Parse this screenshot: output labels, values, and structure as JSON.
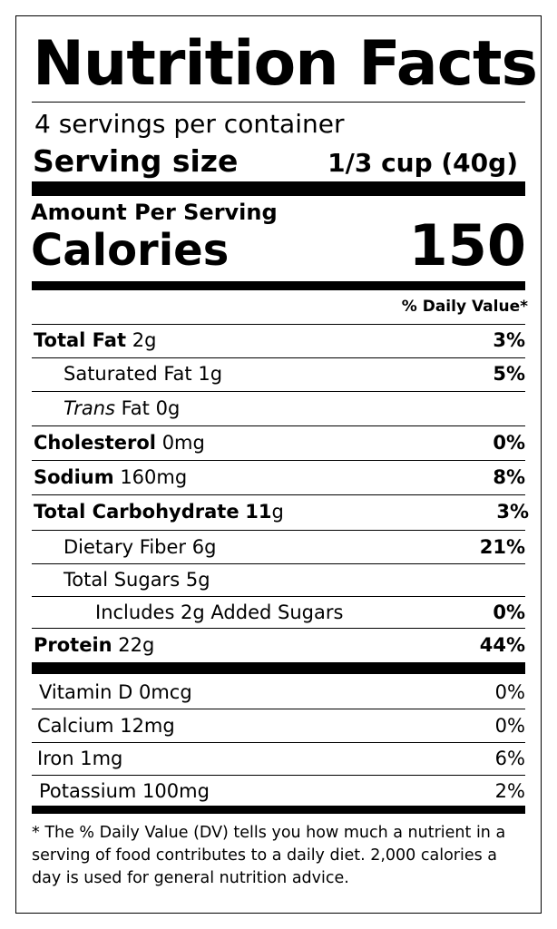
{
  "title": "Nutrition Facts",
  "servings_per_container": "4 servings per container",
  "serving_size_label": "Serving size",
  "serving_size_value": "1/3 cup (40g)",
  "amount_per_serving": "Amount Per Serving",
  "calories_label": "Calories",
  "calories_value": "150",
  "daily_value_header": "% Daily Value*",
  "nutrients": {
    "total_fat": {
      "name": "Total Fat",
      "amount": "2g",
      "dv": "3%"
    },
    "saturated_fat": {
      "name": "Saturated Fat",
      "amount": "1g",
      "dv": "5%"
    },
    "trans_fat": {
      "name_italic": "Trans",
      "name": "Fat",
      "amount": "0g"
    },
    "cholesterol": {
      "name": "Cholesterol",
      "amount": "0mg",
      "dv": "0%"
    },
    "sodium": {
      "name": "Sodium",
      "amount": "160mg",
      "dv": "8%"
    },
    "total_carbohydrate": {
      "name": "Total Carbohydrate",
      "amount_bold": "11",
      "amount_unit": "g",
      "dv": "3%"
    },
    "dietary_fiber": {
      "name": "Dietary Fiber",
      "amount": "6g",
      "dv": "21%"
    },
    "total_sugars": {
      "name": "Total Sugars",
      "amount": "5g"
    },
    "added_sugars": {
      "name": "Includes 2g Added Sugars",
      "dv": "0%"
    },
    "protein": {
      "name": "Protein",
      "amount": "22g",
      "dv": "44%"
    }
  },
  "vitamins": {
    "vitamin_d": {
      "name": "Vitamin D",
      "amount": "0mcg",
      "dv": "0%"
    },
    "calcium": {
      "name": "Calcium",
      "amount": "12mg",
      "dv": "0%"
    },
    "iron": {
      "name": "Iron",
      "amount": "1mg",
      "dv": "6%"
    },
    "potassium": {
      "name": "Potassium",
      "amount": "100mg",
      "dv": "2%"
    }
  },
  "footnote": "* The % Daily Value (DV) tells you how much a nutrient in a serving of food contributes to a daily diet. 2,000 calories a day is used for general nutrition advice."
}
